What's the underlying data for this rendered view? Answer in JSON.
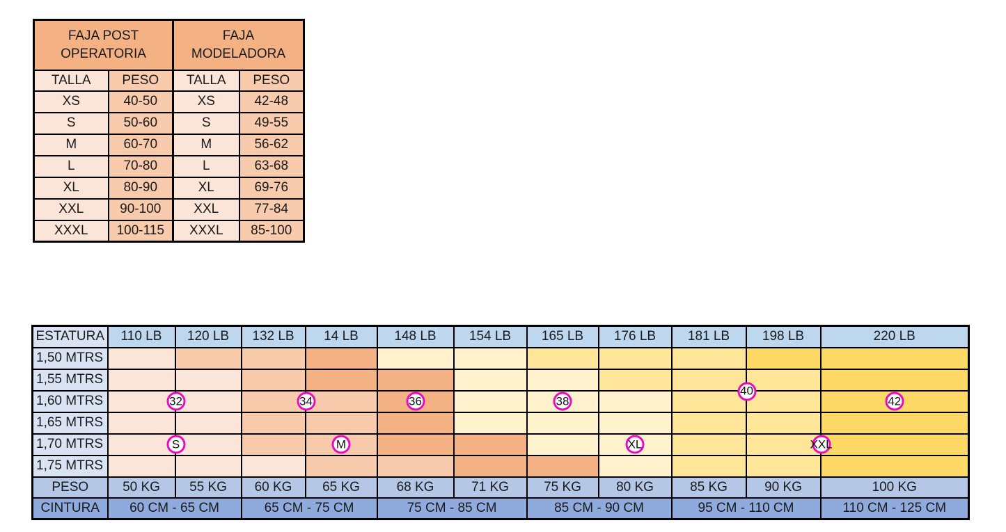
{
  "palette": {
    "peach_light": "#fbe5d9",
    "peach_mid": "#f8cbad",
    "peach_dark": "#f4b183",
    "yellow_light": "#fff2cc",
    "yellow_mid": "#ffe699",
    "yellow_dark": "#ffd966",
    "blue_pale": "#dae3f3",
    "blue_header": "#bdd7ee",
    "blue_mid": "#b4c7e7",
    "blue_dark": "#8faadc",
    "badge_ring": "#e90bc2",
    "border": "#000000"
  },
  "size_table": {
    "groups": [
      {
        "title": "FAJA POST OPERATORIA",
        "columns": [
          "TALLA",
          "PESO"
        ]
      },
      {
        "title": "FAJA MODELADORA",
        "columns": [
          "TALLA",
          "PESO"
        ]
      }
    ],
    "rows": [
      {
        "cells": [
          "XS",
          "40-50",
          "XS",
          "42-48"
        ]
      },
      {
        "cells": [
          "S",
          "50-60",
          "S",
          "49-55"
        ]
      },
      {
        "cells": [
          "M",
          "60-70",
          "M",
          "56-62"
        ]
      },
      {
        "cells": [
          "L",
          "70-80",
          "L",
          "63-68"
        ]
      },
      {
        "cells": [
          "XL",
          "80-90",
          "XL",
          "69-76"
        ]
      },
      {
        "cells": [
          "XXL",
          "90-100",
          "XXL",
          "77-84"
        ]
      },
      {
        "cells": [
          "XXXL",
          "100-115",
          "XXXL",
          "85-100"
        ]
      }
    ]
  },
  "matrix_table": {
    "corner_label": "ESTATURA",
    "weight_headers": [
      "110 LB",
      "120 LB",
      "132 LB",
      "14 LB",
      "148 LB",
      "154 LB",
      "165 LB",
      "176 LB",
      "181 LB",
      "198 LB",
      "220 LB"
    ],
    "height_labels": [
      "1,50 MTRS",
      "1,55 MTRS",
      "1,60 MTRS",
      "1,65 MTRS",
      "1,70 MTRS",
      "1,75 MTRS"
    ],
    "shade_colors": {
      "P1": "#fbe5d9",
      "P2": "#f8cbad",
      "P3": "#f4b183",
      "Y1": "#fff2cc",
      "Y2": "#ffe699",
      "Y3": "#ffd966"
    },
    "shade_grid": [
      [
        "P1",
        "P2",
        "P2",
        "P3",
        "Y1",
        "Y1",
        "Y2",
        "Y2",
        "Y2",
        "Y3",
        "Y3"
      ],
      [
        "P1",
        "P1",
        "P2",
        "P3",
        "P3",
        "Y1",
        "Y1",
        "Y2",
        "Y2",
        "Y2",
        "Y3"
      ],
      [
        "P1",
        "P1",
        "P2",
        "P2",
        "P3",
        "Y1",
        "Y1",
        "Y1",
        "Y2",
        "Y2",
        "Y3"
      ],
      [
        "P1",
        "P1",
        "P2",
        "P2",
        "P3",
        "Y1",
        "Y1",
        "Y1",
        "Y2",
        "Y2",
        "Y3"
      ],
      [
        "P1",
        "P1",
        "P2",
        "P2",
        "P3",
        "P3",
        "Y1",
        "Y1",
        "Y2",
        "Y2",
        "Y3"
      ],
      [
        "P1",
        "P1",
        "P1",
        "P2",
        "P2",
        "P3",
        "P3",
        "Y1",
        "Y2",
        "Y2",
        "Y3"
      ]
    ],
    "size_badges": [
      {
        "label": "32",
        "row": 2,
        "col": 1,
        "anchor": "left"
      },
      {
        "label": "34",
        "row": 2,
        "col": 3,
        "anchor": "left"
      },
      {
        "label": "36",
        "row": 2,
        "col": 4,
        "anchor": "center"
      },
      {
        "label": "38",
        "row": 2,
        "col": 6,
        "anchor": "center"
      },
      {
        "label": "40",
        "row": 2,
        "col": 9,
        "anchor": "top-left"
      },
      {
        "label": "42",
        "row": 2,
        "col": 10,
        "anchor": "center"
      },
      {
        "label": "S",
        "row": 4,
        "col": 1,
        "anchor": "left"
      },
      {
        "label": "M",
        "row": 4,
        "col": 3,
        "anchor": "center"
      },
      {
        "label": "XL",
        "row": 4,
        "col": 7,
        "anchor": "center"
      },
      {
        "label": "XXL",
        "row": 4,
        "col": 10,
        "anchor": "left"
      }
    ],
    "peso_row": {
      "label": "PESO",
      "values": [
        "50 KG",
        "55 KG",
        "60 KG",
        "65 KG",
        "68 KG",
        "71 KG",
        "75 KG",
        "80 KG",
        "85 KG",
        "90 KG",
        "100 KG"
      ]
    },
    "cintura_row": {
      "label": "CINTURA",
      "spans": [
        {
          "text": "60 CM - 65 CM",
          "cols": 2
        },
        {
          "text": "65 CM - 75 CM",
          "cols": 2
        },
        {
          "text": "75 CM - 85 CM",
          "cols": 2
        },
        {
          "text": "85 CM - 90 CM",
          "cols": 2
        },
        {
          "text": "95 CM - 110 CM",
          "cols": 2
        },
        {
          "text": "110 CM - 125 CM",
          "cols": 1
        }
      ]
    }
  },
  "chart_data": [
    {
      "type": "table",
      "title": "FAJA POST OPERATORIA / FAJA MODELADORA",
      "columns": [
        "TALLA (FAJA POST OPERATORIA)",
        "PESO (FAJA POST OPERATORIA)",
        "TALLA (FAJA MODELADORA)",
        "PESO (FAJA MODELADORA)"
      ],
      "rows": [
        [
          "XS",
          "40-50",
          "XS",
          "42-48"
        ],
        [
          "S",
          "50-60",
          "S",
          "49-55"
        ],
        [
          "M",
          "60-70",
          "M",
          "56-62"
        ],
        [
          "L",
          "70-80",
          "L",
          "63-68"
        ],
        [
          "XL",
          "80-90",
          "XL",
          "69-76"
        ],
        [
          "XXL",
          "90-100",
          "XXL",
          "77-84"
        ],
        [
          "XXXL",
          "100-115",
          "XXXL",
          "85-100"
        ]
      ]
    },
    {
      "type": "table",
      "title": "Tabla de tallas por estatura (MTRS) y peso (LB/KG)",
      "columns": [
        "ESTATURA",
        "110 LB",
        "120 LB",
        "132 LB",
        "14 LB",
        "148 LB",
        "154 LB",
        "165 LB",
        "176 LB",
        "181 LB",
        "198 LB",
        "220 LB"
      ],
      "row_labels": [
        "1,50 MTRS",
        "1,55 MTRS",
        "1,60 MTRS",
        "1,65 MTRS",
        "1,70 MTRS",
        "1,75 MTRS"
      ],
      "footer_rows": [
        [
          "PESO",
          "50 KG",
          "55 KG",
          "60 KG",
          "65 KG",
          "68 KG",
          "71 KG",
          "75 KG",
          "80 KG",
          "85 KG",
          "90 KG",
          "100 KG"
        ],
        [
          "CINTURA",
          "60 CM - 65 CM",
          "65 CM - 75 CM",
          "75 CM - 85 CM",
          "85 CM - 90 CM",
          "95 CM - 110 CM",
          "110 CM - 125 CM"
        ]
      ],
      "annotations": [
        {
          "label": "32",
          "at_row": "1,60 MTRS",
          "at_col": "between 110 LB and 120 LB"
        },
        {
          "label": "34",
          "at_row": "1,60 MTRS",
          "at_col": "between 132 LB and 14 LB"
        },
        {
          "label": "36",
          "at_row": "1,60 MTRS",
          "at_col": "148 LB"
        },
        {
          "label": "38",
          "at_row": "1,60 MTRS",
          "at_col": "165 LB"
        },
        {
          "label": "40",
          "at_row": "between 1,55 MTRS and 1,60 MTRS",
          "at_col": "between 181 LB and 198 LB"
        },
        {
          "label": "42",
          "at_row": "1,60 MTRS",
          "at_col": "220 LB"
        },
        {
          "label": "S",
          "at_row": "1,70 MTRS",
          "at_col": "between 110 LB and 120 LB"
        },
        {
          "label": "M",
          "at_row": "1,70 MTRS",
          "at_col": "14 LB"
        },
        {
          "label": "XL",
          "at_row": "1,70 MTRS",
          "at_col": "176 LB"
        },
        {
          "label": "XXL",
          "at_row": "1,70 MTRS",
          "at_col": "between 198 LB and 220 LB"
        }
      ]
    }
  ]
}
